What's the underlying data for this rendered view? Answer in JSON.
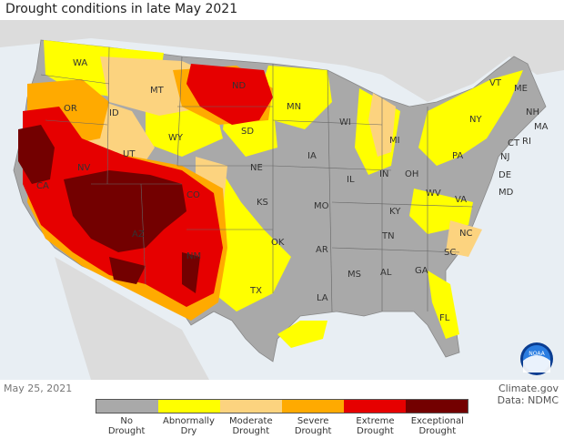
{
  "title": "Drought conditions in late May 2021",
  "date": "May 25, 2021",
  "credit": {
    "site": "Climate.gov",
    "data": "Data: NDMC"
  },
  "logo": {
    "text": "NOAA",
    "icon": "noaa-logo-icon"
  },
  "colors": {
    "none": "#a9a9a9",
    "abnormally_dry": "#ffff00",
    "moderate": "#fcd37f",
    "severe": "#ffaa00",
    "extreme": "#e60000",
    "exceptional": "#730000",
    "water": "#e8eef3",
    "land": "#d6d6d6"
  },
  "legend": [
    {
      "line1": "No",
      "line2": "Drought",
      "level": "none"
    },
    {
      "line1": "Abnormally",
      "line2": "Dry",
      "level": "abnormally_dry"
    },
    {
      "line1": "Moderate",
      "line2": "Drought",
      "level": "moderate"
    },
    {
      "line1": "Severe",
      "line2": "Drought",
      "level": "severe"
    },
    {
      "line1": "Extreme",
      "line2": "Drought",
      "level": "extreme"
    },
    {
      "line1": "Exceptional",
      "line2": "Drought",
      "level": "exceptional"
    }
  ],
  "states": [
    "WA",
    "OR",
    "CA",
    "ID",
    "NV",
    "MT",
    "WY",
    "UT",
    "AZ",
    "CO",
    "NM",
    "ND",
    "SD",
    "NE",
    "KS",
    "OK",
    "TX",
    "MN",
    "IA",
    "MO",
    "AR",
    "LA",
    "WI",
    "IL",
    "MS",
    "MI",
    "IN",
    "KY",
    "TN",
    "AL",
    "GA",
    "OH",
    "WV",
    "VA",
    "NC",
    "SC",
    "FL",
    "PA",
    "NY",
    "VT",
    "ME",
    "NH",
    "MA",
    "RI",
    "CT",
    "NJ",
    "DE",
    "MD"
  ]
}
